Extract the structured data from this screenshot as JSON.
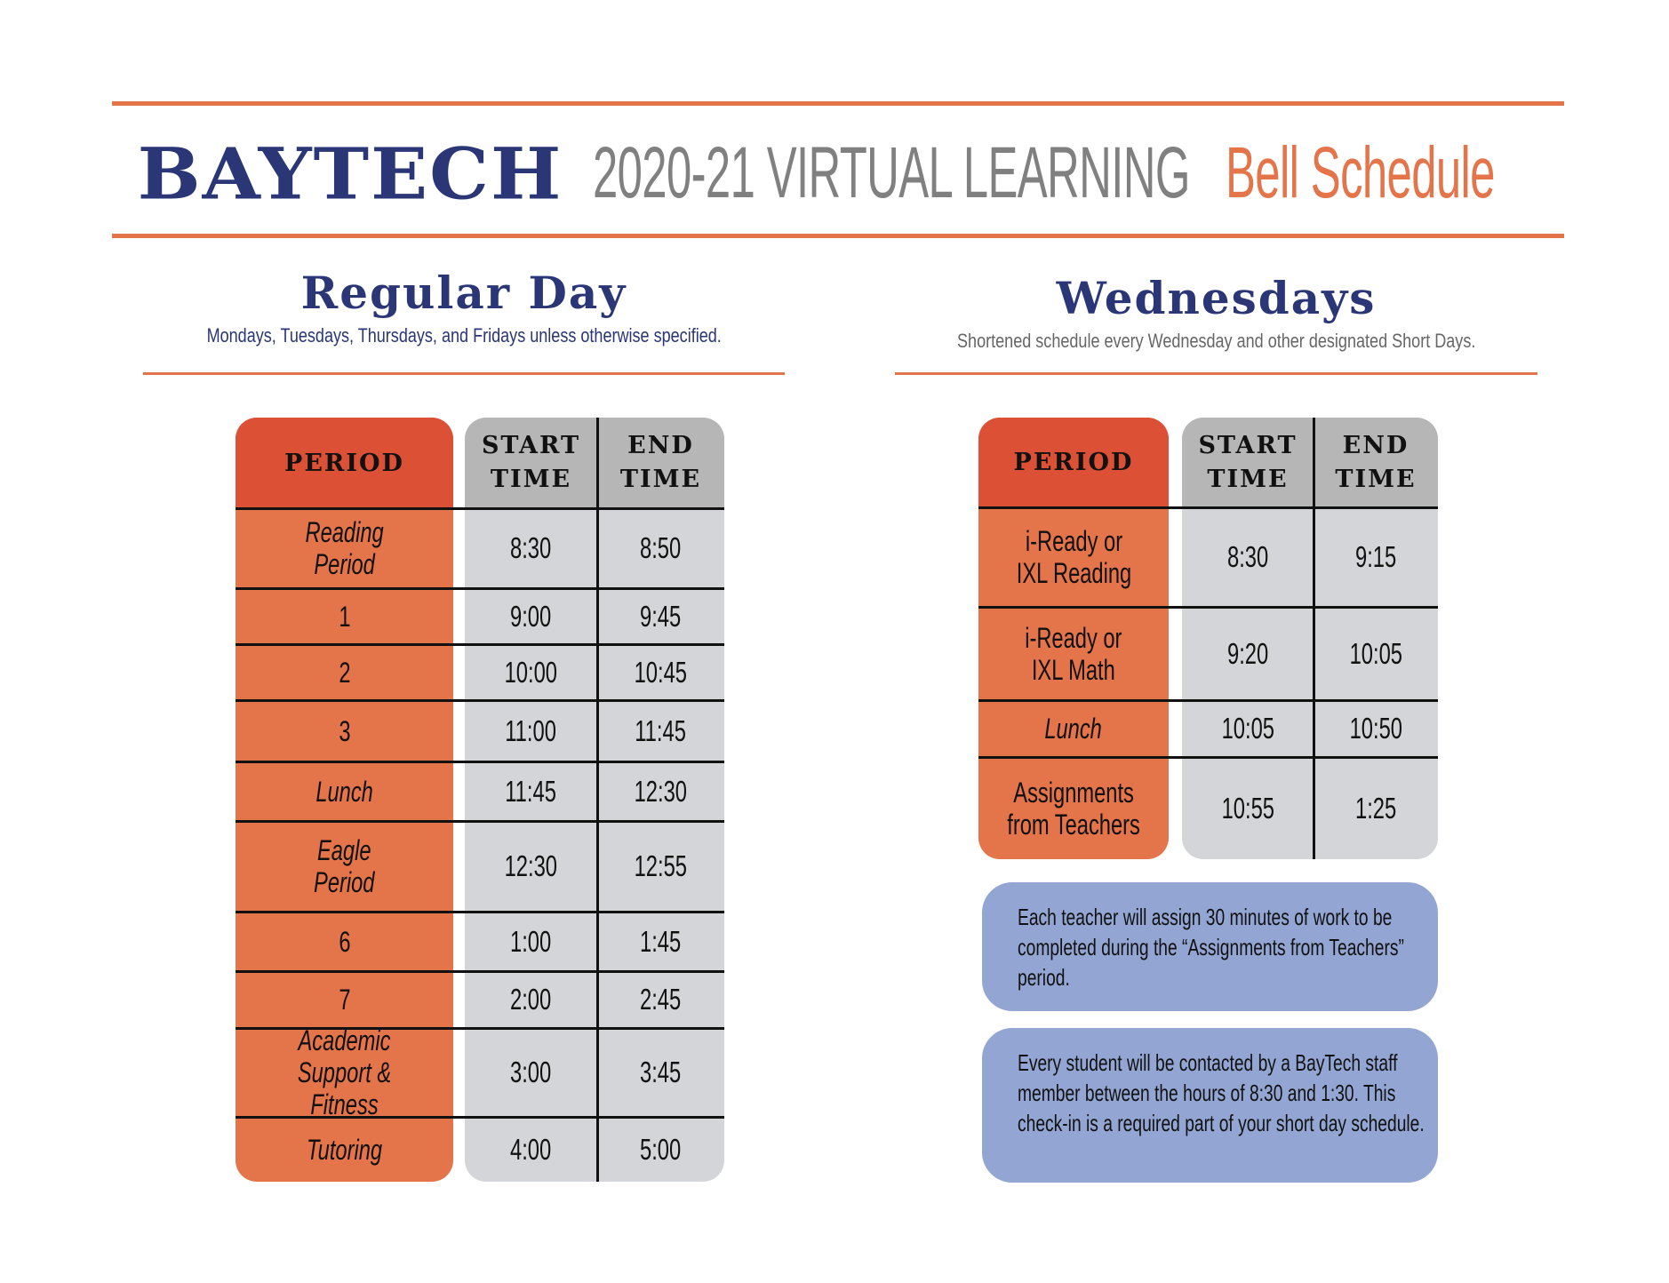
{
  "header": {
    "brand": "BAYTECH",
    "subtitle": "2020-21 VIRTUAL LEARNING",
    "highlight": "Bell Schedule"
  },
  "colors": {
    "accent_orange": "#e4744a",
    "header_red": "#dc5036",
    "navy": "#2a3676",
    "gray_text": "#808080",
    "time_column": "#d4d5d9",
    "time_header": "#b6b6b6",
    "note_blue": "#93a6d3"
  },
  "regular": {
    "title": "Regular Day",
    "description": "Mondays, Tuesdays, Thursdays, and Fridays unless otherwise specified.",
    "columns": [
      "PERIOD",
      "START\nTIME",
      "END\nTIME"
    ],
    "col_labels": {
      "period": "PERIOD",
      "start": "START TIME",
      "end": "END TIME"
    },
    "rows": [
      {
        "period": "Reading\nPeriod",
        "start": "8:30",
        "end": "8:50",
        "italic": true
      },
      {
        "period": "1",
        "start": "9:00",
        "end": "9:45",
        "italic": false
      },
      {
        "period": "2",
        "start": "10:00",
        "end": "10:45",
        "italic": false
      },
      {
        "period": "3",
        "start": "11:00",
        "end": "11:45",
        "italic": false
      },
      {
        "period": "Lunch",
        "start": "11:45",
        "end": "12:30",
        "italic": true
      },
      {
        "period": "Eagle\nPeriod",
        "start": "12:30",
        "end": "12:55",
        "italic": true
      },
      {
        "period": "6",
        "start": "1:00",
        "end": "1:45",
        "italic": false
      },
      {
        "period": "7",
        "start": "2:00",
        "end": "2:45",
        "italic": false
      },
      {
        "period": "Academic\nSupport & Fitness",
        "start": "3:00",
        "end": "3:45",
        "italic": true
      },
      {
        "period": "Tutoring",
        "start": "4:00",
        "end": "5:00",
        "italic": true
      }
    ]
  },
  "wednesday": {
    "title": "Wednesdays",
    "description": "Shortened schedule every Wednesday and other designated Short Days.",
    "col_labels": {
      "period": "PERIOD",
      "start": "START TIME",
      "end": "END TIME"
    },
    "rows": [
      {
        "period": "i-Ready or\nIXL Reading",
        "start": "8:30",
        "end": "9:15",
        "italic": false
      },
      {
        "period": "i-Ready or\nIXL Math",
        "start": "9:20",
        "end": "10:05",
        "italic": false
      },
      {
        "period": "Lunch",
        "start": "10:05",
        "end": "10:50",
        "italic": true
      },
      {
        "period": "Assignments\nfrom Teachers",
        "start": "10:55",
        "end": "1:25",
        "italic": false
      }
    ],
    "notes": [
      "Each teacher will assign 30 minutes of work to be completed during the “Assignments from Teachers” period.",
      "Every student will be contacted by a BayTech staff member between the hours of 8:30 and 1:30. This check-in is a required part of your short day schedule."
    ]
  }
}
